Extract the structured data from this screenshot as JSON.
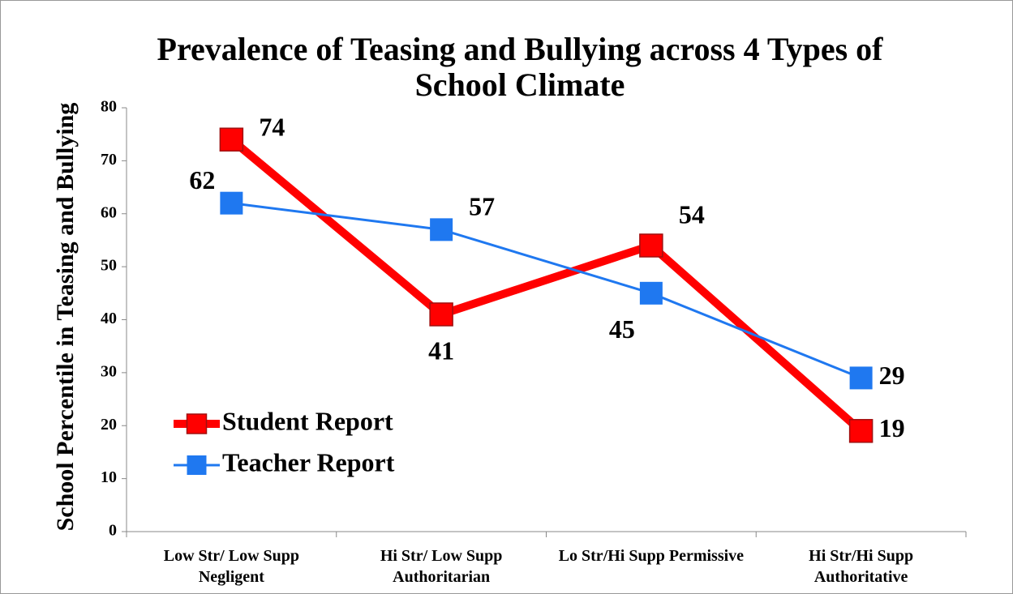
{
  "chart_data": {
    "type": "line",
    "title": "Prevalence of Teasing and Bullying across 4 Types of School Climate",
    "y_label": "School Percentile in Teasing and Bullying",
    "categories": [
      "Low Str/ Low Supp Negligent",
      "Hi Str/ Low Supp Authoritarian",
      "Lo Str/Hi Supp Permissive",
      "Hi Str/Hi Supp Authoritative"
    ],
    "series": [
      {
        "name": "Student Report",
        "color": "#ff0000",
        "values": [
          74,
          41,
          54,
          19
        ]
      },
      {
        "name": "Teacher Report",
        "color": "#1f78f0",
        "values": [
          62,
          57,
          45,
          29
        ]
      }
    ],
    "ylim": [
      0,
      80
    ],
    "yticks": [
      0,
      10,
      20,
      30,
      40,
      50,
      60,
      70,
      80
    ],
    "legend": "left"
  }
}
